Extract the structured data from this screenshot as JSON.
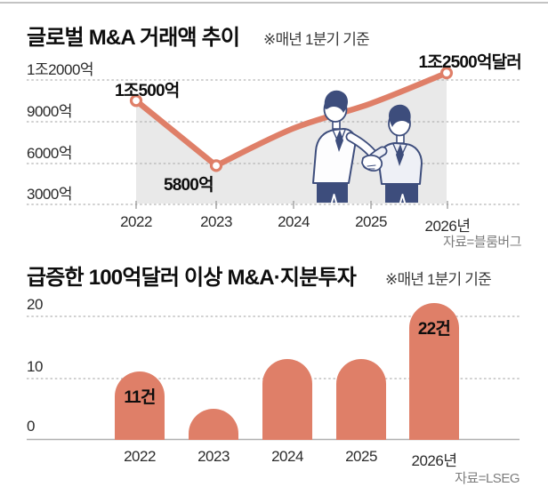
{
  "colors": {
    "accent": "#df7f68",
    "area_fill": "#e9e9e9",
    "navy": "#3d4d7c",
    "gridline": "#b3b3b3"
  },
  "chart_data": [
    {
      "type": "area",
      "title": "글로벌 M&A 거래액 추이",
      "note": "※매년 1분기 기준",
      "x": [
        "2022",
        "2023",
        "2024",
        "2025",
        "2026년"
      ],
      "values": [
        10500,
        5800,
        8500,
        10300,
        12500
      ],
      "point_labels": [
        "1조500억",
        "5800억",
        null,
        null,
        "1조2500억달러"
      ],
      "unit": "억달러",
      "yticks": [
        3000,
        6000,
        9000,
        12000
      ],
      "ytick_labels": [
        "3000억",
        "6000억",
        "9000억",
        "1조2000억"
      ],
      "ylim": [
        3000,
        13200
      ],
      "grid": "dashed-horizontal",
      "markers_at": [
        0,
        1,
        4
      ],
      "legend": "none",
      "source": "자료=블룸버그"
    },
    {
      "type": "bar",
      "title": "급증한 100억달러 이상 M&A·지분투자",
      "note": "※매년 1분기 기준",
      "categories": [
        "2022",
        "2023",
        "2024",
        "2025",
        "2026년"
      ],
      "values": [
        11,
        5,
        13,
        13,
        22
      ],
      "bar_labels": [
        "11건",
        null,
        null,
        null,
        "22건"
      ],
      "unit": "건",
      "yticks": [
        0,
        10,
        20
      ],
      "ytick_labels": [
        "0",
        "10",
        "20"
      ],
      "ylim": [
        0,
        23
      ],
      "grid": "dashed-horizontal",
      "legend": "none",
      "source": "자료=LSEG"
    }
  ]
}
